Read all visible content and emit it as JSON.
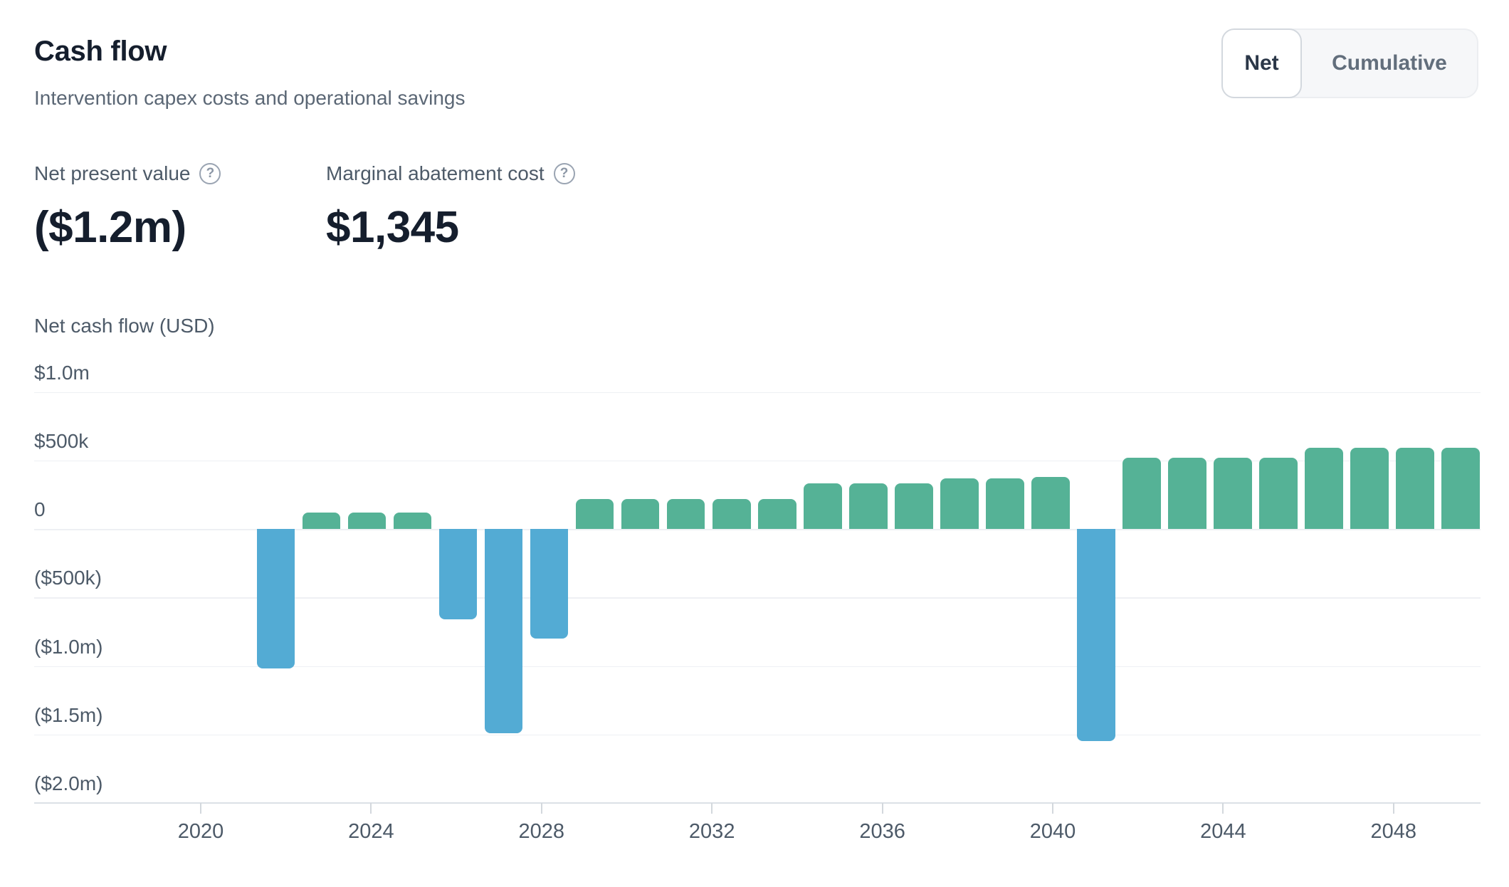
{
  "header": {
    "title": "Cash flow",
    "subtitle": "Intervention capex costs and operational savings"
  },
  "toggle": {
    "options": [
      "Net",
      "Cumulative"
    ],
    "selected": "Net"
  },
  "metrics": [
    {
      "label": "Net present value",
      "value": "($1.2m)",
      "help_icon": "question-mark-icon"
    },
    {
      "label": "Marginal abatement cost",
      "value": "$1,345",
      "help_icon": "question-mark-icon"
    }
  ],
  "chart_data": {
    "type": "bar",
    "title": "Net cash flow (USD)",
    "series_name": "Net cash flow",
    "x": [
      2023,
      2024,
      2025,
      2026,
      2027,
      2028,
      2029,
      2030,
      2031,
      2032,
      2033,
      2034,
      2035,
      2036,
      2037,
      2038,
      2039,
      2040,
      2041,
      2042,
      2043,
      2044,
      2045,
      2046,
      2047,
      2048,
      2049
    ],
    "values": [
      -1020000,
      120000,
      120000,
      120000,
      -660000,
      -1490000,
      -800000,
      220000,
      220000,
      220000,
      220000,
      220000,
      330000,
      330000,
      330000,
      370000,
      370000,
      380000,
      -1550000,
      520000,
      520000,
      520000,
      520000,
      590000,
      590000,
      590000,
      590000
    ],
    "y_ticks": [
      {
        "value": 1000000,
        "label": "$1.0m"
      },
      {
        "value": 500000,
        "label": "$500k"
      },
      {
        "value": 0,
        "label": "0"
      },
      {
        "value": -500000,
        "label": "($500k)"
      },
      {
        "value": -1000000,
        "label": "($1.0m)"
      },
      {
        "value": -1500000,
        "label": "($1.5m)"
      },
      {
        "value": -2000000,
        "label": "($2.0m)"
      }
    ],
    "x_ticks": [
      2020,
      2024,
      2028,
      2032,
      2036,
      2040,
      2044,
      2048
    ],
    "ylim": [
      -2000000,
      1000000
    ],
    "grid": "horizontal",
    "legend": "none",
    "colors": {
      "positive": "#55b296",
      "negative": "#53abd4"
    }
  }
}
